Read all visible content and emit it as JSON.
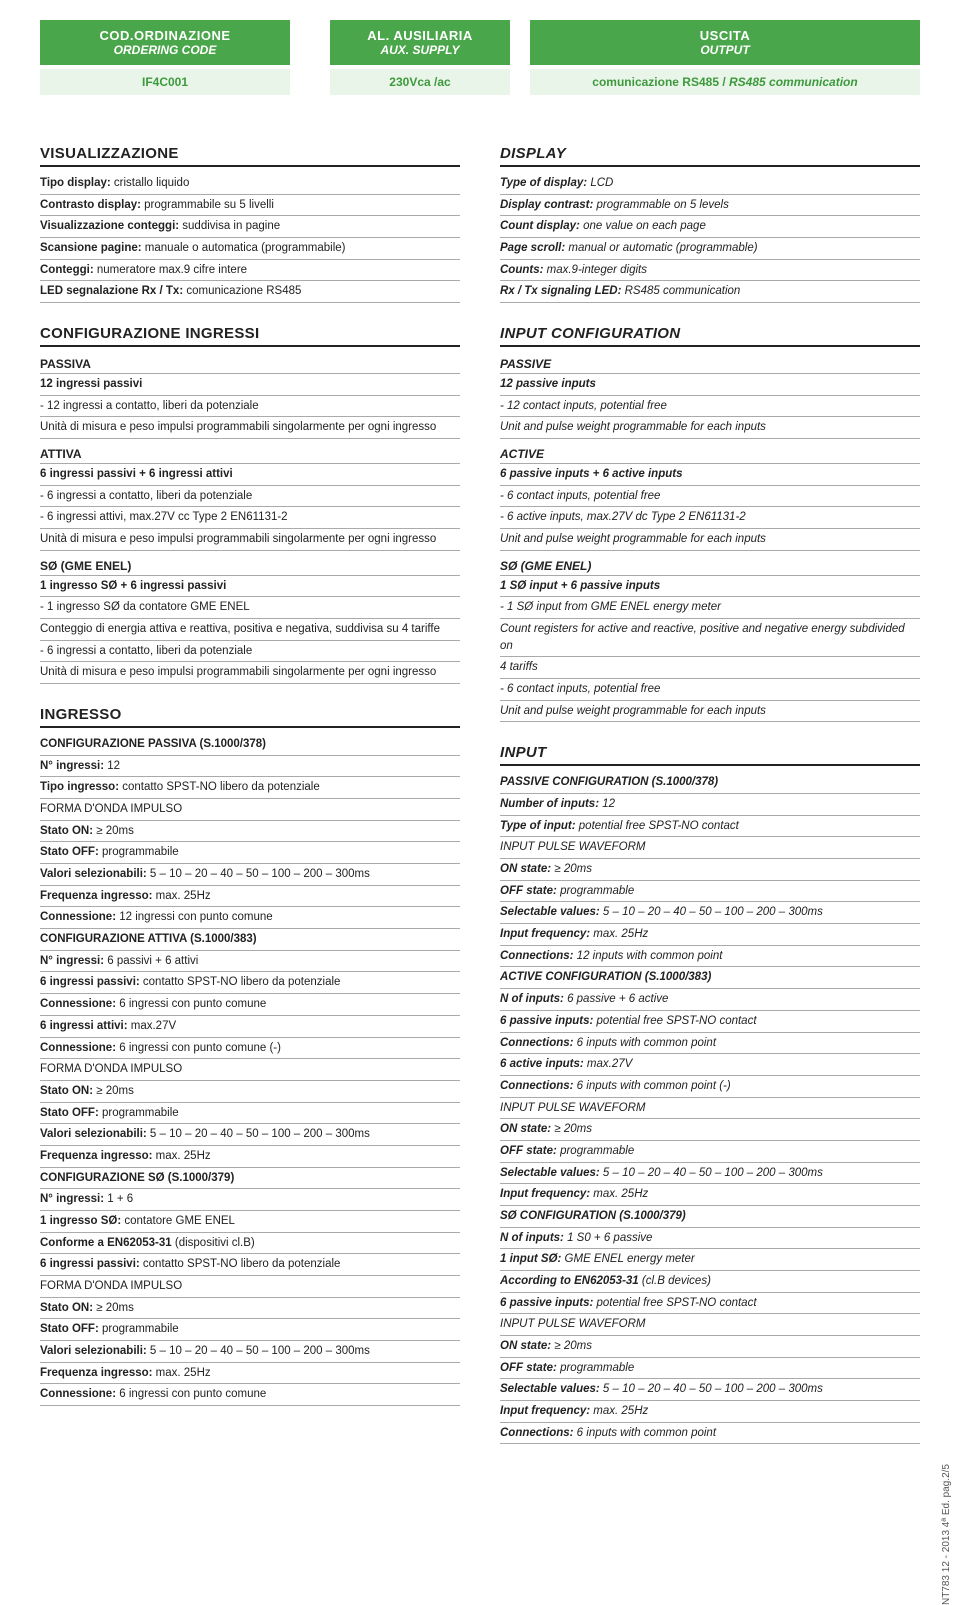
{
  "header": {
    "code": {
      "it": "COD.ORDINAZIONE",
      "en": "ORDERING CODE"
    },
    "aux": {
      "it": "AL. AUSILIARIA",
      "en": "AUX. SUPPLY"
    },
    "out": {
      "it": "USCITA",
      "en": "OUTPUT"
    }
  },
  "subheader": {
    "code": "IF4C001",
    "aux": "230Vca /ac",
    "out_it": "comunicazione RS485 / ",
    "out_en": "RS485 communication"
  },
  "visual": {
    "title_it": "VISUALIZZAZIONE",
    "title_en": "DISPLAY",
    "rows_it": [
      {
        "l": "Tipo display:",
        "v": " cristallo liquido"
      },
      {
        "l": "Contrasto display:",
        "v": " programmabile su 5 livelli"
      },
      {
        "l": "Visualizzazione conteggi:",
        "v": " suddivisa in pagine"
      },
      {
        "l": "Scansione pagine:",
        "v": " manuale o automatica (programmabile)"
      },
      {
        "l": "Conteggi:",
        "v": " numeratore max.9 cifre intere"
      },
      {
        "l": "LED segnalazione Rx / Tx:",
        "v": " comunicazione RS485"
      }
    ],
    "rows_en": [
      {
        "l": "Type of display:",
        "v": " LCD"
      },
      {
        "l": "Display contrast:",
        "v": " programmable on 5 levels"
      },
      {
        "l": "Count display:",
        "v": " one value on each page"
      },
      {
        "l": "Page scroll:",
        "v": " manual or automatic (programmable)"
      },
      {
        "l": "Counts:",
        "v": " max.9-integer digits"
      },
      {
        "l": "Rx / Tx signaling LED:",
        "v": " RS485 communication"
      }
    ]
  },
  "config": {
    "title_it": "CONFIGURAZIONE INGRESSI",
    "title_en": "INPUT CONFIGURATION",
    "it": [
      {
        "t": "sub",
        "v": "PASSIVA"
      },
      {
        "t": "b",
        "v": "12 ingressi passivi"
      },
      {
        "t": "p",
        "v": "- 12 ingressi a contatto, liberi da potenziale"
      },
      {
        "t": "p",
        "v": "Unità di misura e peso impulsi programmabili singolarmente per ogni ingresso"
      },
      {
        "t": "sub",
        "v": "ATTIVA"
      },
      {
        "t": "b",
        "v": "6 ingressi passivi + 6 ingressi attivi"
      },
      {
        "t": "p",
        "v": "- 6 ingressi a contatto, liberi da potenziale"
      },
      {
        "t": "p",
        "v": "- 6 ingressi attivi, max.27V cc Type 2 EN61131-2"
      },
      {
        "t": "p",
        "v": "Unità di misura e peso impulsi programmabili singolarmente per ogni ingresso"
      },
      {
        "t": "sub",
        "v": "SØ (GME ENEL)"
      },
      {
        "t": "b",
        "v": "1 ingresso SØ + 6 ingressi passivi"
      },
      {
        "t": "p",
        "v": "- 1 ingresso SØ da contatore GME ENEL"
      },
      {
        "t": "p",
        "v": "Conteggio di energia attiva e reattiva, positiva e negativa, suddivisa su 4 tariffe"
      },
      {
        "t": "p",
        "v": "- 6 ingressi a contatto, liberi da potenziale"
      },
      {
        "t": "p",
        "v": "Unità di misura e peso impulsi programmabili singolarmente per ogni ingresso"
      }
    ],
    "en": [
      {
        "t": "sub",
        "v": "PASSIVE"
      },
      {
        "t": "b",
        "v": "12 passive inputs"
      },
      {
        "t": "p",
        "v": "- 12 contact inputs, potential free"
      },
      {
        "t": "p",
        "v": "Unit and pulse weight programmable for each inputs"
      },
      {
        "t": "sub",
        "v": "ACTIVE"
      },
      {
        "t": "b",
        "v": "6 passive inputs + 6 active inputs"
      },
      {
        "t": "p",
        "v": "- 6 contact inputs, potential free"
      },
      {
        "t": "p",
        "v": "- 6 active inputs, max.27V dc Type 2 EN61131-2"
      },
      {
        "t": "p",
        "v": "Unit and pulse weight programmable for each inputs"
      },
      {
        "t": "sub",
        "v": "SØ (GME ENEL)"
      },
      {
        "t": "b",
        "v": "1 SØ input + 6 passive inputs"
      },
      {
        "t": "p",
        "v": "- 1 SØ input from GME ENEL energy meter"
      },
      {
        "t": "p",
        "v": "Count registers for active and reactive, positive and negative energy subdivided on"
      },
      {
        "t": "p",
        "v": "4 tariffs"
      },
      {
        "t": "p",
        "v": "- 6 contact inputs, potential free"
      },
      {
        "t": "p",
        "v": "Unit and pulse weight programmable for each inputs"
      }
    ]
  },
  "ingresso": {
    "title_it": "INGRESSO",
    "title_en": "INPUT",
    "it": [
      {
        "t": "b",
        "v": "CONFIGURAZIONE PASSIVA (S.1000/378)"
      },
      {
        "t": "kv",
        "l": "N° ingressi:",
        "v": " 12"
      },
      {
        "t": "kv",
        "l": "Tipo ingresso:",
        "v": " contatto SPST-NO libero da potenziale"
      },
      {
        "t": "p",
        "v": "FORMA D'ONDA IMPULSO"
      },
      {
        "t": "kv",
        "l": "Stato ON:",
        "v": " ≥ 20ms"
      },
      {
        "t": "kv",
        "l": "Stato OFF:",
        "v": " programmabile"
      },
      {
        "t": "kv",
        "l": "Valori selezionabili:",
        "v": " 5 – 10 – 20 – 40 – 50 – 100 – 200 – 300ms"
      },
      {
        "t": "kv",
        "l": "Frequenza ingresso:",
        "v": " max. 25Hz"
      },
      {
        "t": "kv",
        "l": "Connessione:",
        "v": " 12 ingressi con punto comune"
      },
      {
        "t": "b",
        "v": "CONFIGURAZIONE ATTIVA (S.1000/383)"
      },
      {
        "t": "kv",
        "l": "N° ingressi:",
        "v": " 6 passivi + 6 attivi"
      },
      {
        "t": "kv",
        "l": "6 ingressi passivi:",
        "v": " contatto SPST-NO libero da potenziale"
      },
      {
        "t": "kv",
        "l": "Connessione:",
        "v": " 6 ingressi con punto comune"
      },
      {
        "t": "kv",
        "l": "6 ingressi attivi:",
        "v": " max.27V"
      },
      {
        "t": "kv",
        "l": "Connessione:",
        "v": " 6 ingressi con punto comune (-)"
      },
      {
        "t": "p",
        "v": "FORMA D'ONDA IMPULSO"
      },
      {
        "t": "kv",
        "l": "Stato ON:",
        "v": " ≥ 20ms"
      },
      {
        "t": "kv",
        "l": "Stato OFF:",
        "v": " programmabile"
      },
      {
        "t": "kv",
        "l": "Valori selezionabili:",
        "v": " 5 – 10 – 20 – 40 – 50 – 100 – 200 – 300ms"
      },
      {
        "t": "kv",
        "l": "Frequenza ingresso:",
        "v": " max. 25Hz"
      },
      {
        "t": "b",
        "v": "CONFIGURAZIONE SØ (S.1000/379)"
      },
      {
        "t": "kv",
        "l": "N° ingressi:",
        "v": " 1 + 6"
      },
      {
        "t": "kv",
        "l": "1 ingresso SØ:",
        "v": " contatore GME ENEL"
      },
      {
        "t": "kv",
        "l": "Conforme a EN62053-31",
        "v": " (dispositivi cl.B)"
      },
      {
        "t": "kv",
        "l": "6 ingressi passivi:",
        "v": " contatto SPST-NO libero da potenziale"
      },
      {
        "t": "p",
        "v": "FORMA D'ONDA IMPULSO"
      },
      {
        "t": "kv",
        "l": "Stato ON:",
        "v": " ≥ 20ms"
      },
      {
        "t": "kv",
        "l": "Stato OFF:",
        "v": " programmabile"
      },
      {
        "t": "kv",
        "l": "Valori selezionabili:",
        "v": " 5 – 10 – 20 – 40 – 50 – 100 – 200 – 300ms"
      },
      {
        "t": "kv",
        "l": "Frequenza ingresso:",
        "v": " max. 25Hz"
      },
      {
        "t": "kv",
        "l": "Connessione:",
        "v": " 6 ingressi con punto comune"
      }
    ],
    "en": [
      {
        "t": "b",
        "v": "PASSIVE CONFIGURATION (S.1000/378)"
      },
      {
        "t": "kv",
        "l": "Number of inputs:",
        "v": " 12"
      },
      {
        "t": "kv",
        "l": "Type of input:",
        "v": " potential free SPST-NO contact"
      },
      {
        "t": "p",
        "v": "INPUT PULSE WAVEFORM"
      },
      {
        "t": "kv",
        "l": "ON state:",
        "v": " ≥ 20ms"
      },
      {
        "t": "kv",
        "l": "OFF state:",
        "v": " programmable"
      },
      {
        "t": "kv",
        "l": "Selectable values:",
        "v": " 5 – 10 – 20 – 40 – 50 – 100 – 200 – 300ms"
      },
      {
        "t": "kv",
        "l": "Input frequency:",
        "v": " max. 25Hz"
      },
      {
        "t": "kv",
        "l": "Connections:",
        "v": " 12 inputs with common point"
      },
      {
        "t": "b",
        "v": "ACTIVE CONFIGURATION (S.1000/383)"
      },
      {
        "t": "kv",
        "l": "N of inputs:",
        "v": " 6 passive + 6 active"
      },
      {
        "t": "kv",
        "l": "6 passive inputs:",
        "v": " potential free SPST-NO contact"
      },
      {
        "t": "kv",
        "l": "Connections:",
        "v": " 6 inputs with common point"
      },
      {
        "t": "kv",
        "l": "6 active inputs:",
        "v": " max.27V"
      },
      {
        "t": "kv",
        "l": "Connections:",
        "v": " 6 inputs with common point (-)"
      },
      {
        "t": "p",
        "v": "INPUT PULSE WAVEFORM"
      },
      {
        "t": "kv",
        "l": "ON state:",
        "v": " ≥ 20ms"
      },
      {
        "t": "kv",
        "l": "OFF state:",
        "v": " programmable"
      },
      {
        "t": "kv",
        "l": "Selectable values:",
        "v": " 5 – 10 – 20 – 40 – 50 – 100 – 200 – 300ms"
      },
      {
        "t": "kv",
        "l": "Input frequency:",
        "v": " max. 25Hz"
      },
      {
        "t": "b",
        "v": "SØ CONFIGURATION (S.1000/379)"
      },
      {
        "t": "kv",
        "l": "N of inputs:",
        "v": " 1 S0 + 6 passive"
      },
      {
        "t": "kv",
        "l": "1 input SØ:",
        "v": " GME ENEL energy meter"
      },
      {
        "t": "kv",
        "l": "According to EN62053-31",
        "v": " (cl.B devices)"
      },
      {
        "t": "kv",
        "l": "6 passive inputs:",
        "v": " potential free SPST-NO contact"
      },
      {
        "t": "p",
        "v": "INPUT PULSE WAVEFORM"
      },
      {
        "t": "kv",
        "l": "ON state:",
        "v": " ≥ 20ms"
      },
      {
        "t": "kv",
        "l": "OFF state:",
        "v": " programmable"
      },
      {
        "t": "kv",
        "l": "Selectable values:",
        "v": " 5 – 10 – 20 – 40 – 50 – 100 – 200 – 300ms"
      },
      {
        "t": "kv",
        "l": "Input frequency:",
        "v": " max. 25Hz"
      },
      {
        "t": "kv",
        "l": "Connections:",
        "v": " 6 inputs with common point"
      }
    ]
  },
  "sidecode": "NT783   12 - 2013   4ª Ed.   pag.2/5"
}
